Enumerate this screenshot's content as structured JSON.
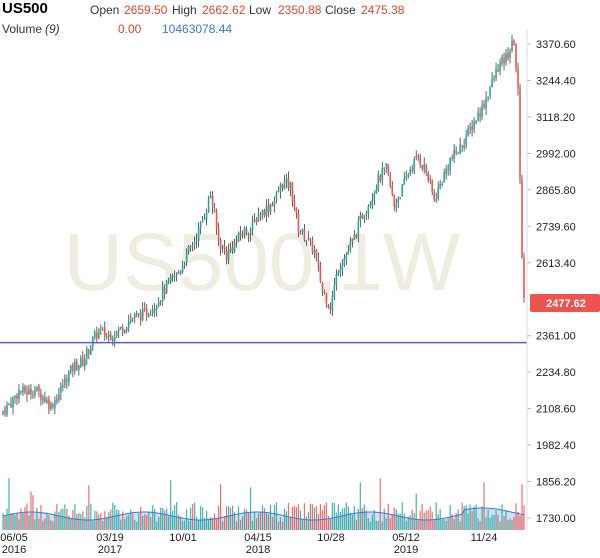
{
  "header": {
    "symbol": "US500",
    "open_label": "Open",
    "open_value": "2659.50",
    "high_label": "High",
    "high_value": "2662.62",
    "low_label": "Low",
    "low_value": "2350.88",
    "close_label": "Close",
    "close_value": "2475.38",
    "volume_label": "Volume",
    "volume_period": "(9)",
    "volume_value": "0.00",
    "volume_ma_value": "10463078.44"
  },
  "watermark": "US500,1W",
  "price_badge": "2477.62",
  "colors": {
    "up": "#26a69a",
    "down": "#ef5350",
    "support_line": "#5b5bd6",
    "volume_ma_fill": "#bcd2ee",
    "volume_ma_line": "#3a78d8",
    "badge_bg": "#ef5350",
    "watermark": "#efece0"
  },
  "chart_data": {
    "type": "candlestick",
    "timeframe": "1W",
    "y_ticks": [
      3370.6,
      3244.4,
      3118.2,
      2992.0,
      2865.8,
      2739.6,
      2613.4,
      2361.0,
      2234.8,
      2108.6,
      1982.4,
      1856.2,
      1730.0
    ],
    "y_tick_labels": [
      "3370.60",
      "3244.40",
      "3118.20",
      "2992.00",
      "2865.80",
      "2739.60",
      "2613.40",
      "2361.00",
      "2234.80",
      "2108.60",
      "1982.40",
      "1856.20",
      "1730.00"
    ],
    "ylim": [
      1720,
      3420
    ],
    "x_ticks": [
      {
        "label": "06/05",
        "year": "2016"
      },
      {
        "label": "03/19",
        "year": "2017"
      },
      {
        "label": "10/01",
        "year": ""
      },
      {
        "label": "04/15",
        "year": "2018"
      },
      {
        "label": "10/28",
        "year": ""
      },
      {
        "label": "05/12",
        "year": "2019"
      },
      {
        "label": "11/24",
        "year": ""
      }
    ],
    "horizontal_line": 2350.88,
    "last_price": 2477.62,
    "close_path": [
      [
        0,
        2100
      ],
      [
        4,
        2130
      ],
      [
        8,
        2170
      ],
      [
        12,
        2165
      ],
      [
        16,
        2175
      ],
      [
        20,
        2150
      ],
      [
        24,
        2120
      ],
      [
        28,
        2160
      ],
      [
        32,
        2220
      ],
      [
        36,
        2260
      ],
      [
        40,
        2270
      ],
      [
        44,
        2330
      ],
      [
        48,
        2380
      ],
      [
        52,
        2360
      ],
      [
        56,
        2370
      ],
      [
        60,
        2390
      ],
      [
        64,
        2420
      ],
      [
        68,
        2430
      ],
      [
        72,
        2440
      ],
      [
        76,
        2470
      ],
      [
        80,
        2510
      ],
      [
        84,
        2550
      ],
      [
        88,
        2580
      ],
      [
        92,
        2640
      ],
      [
        96,
        2690
      ],
      [
        100,
        2760
      ],
      [
        104,
        2850
      ],
      [
        108,
        2690
      ],
      [
        112,
        2640
      ],
      [
        116,
        2680
      ],
      [
        120,
        2720
      ],
      [
        124,
        2730
      ],
      [
        128,
        2780
      ],
      [
        132,
        2800
      ],
      [
        136,
        2830
      ],
      [
        140,
        2890
      ],
      [
        144,
        2880
      ],
      [
        148,
        2730
      ],
      [
        152,
        2700
      ],
      [
        156,
        2650
      ],
      [
        160,
        2520
      ],
      [
        164,
        2460
      ],
      [
        168,
        2600
      ],
      [
        172,
        2640
      ],
      [
        176,
        2700
      ],
      [
        180,
        2780
      ],
      [
        184,
        2830
      ],
      [
        188,
        2900
      ],
      [
        192,
        2940
      ],
      [
        196,
        2810
      ],
      [
        200,
        2870
      ],
      [
        204,
        2940
      ],
      [
        208,
        2980
      ],
      [
        212,
        2930
      ],
      [
        216,
        2830
      ],
      [
        220,
        2900
      ],
      [
        224,
        2970
      ],
      [
        228,
        3000
      ],
      [
        232,
        3050
      ],
      [
        236,
        3100
      ],
      [
        240,
        3150
      ],
      [
        244,
        3220
      ],
      [
        248,
        3290
      ],
      [
        252,
        3320
      ],
      [
        256,
        3380
      ],
      [
        258,
        3200
      ],
      [
        259,
        2920
      ],
      [
        260,
        2640
      ],
      [
        261,
        2478
      ]
    ],
    "volume_ylim": [
      0,
      100
    ],
    "volume_ma_level": 0.45
  }
}
